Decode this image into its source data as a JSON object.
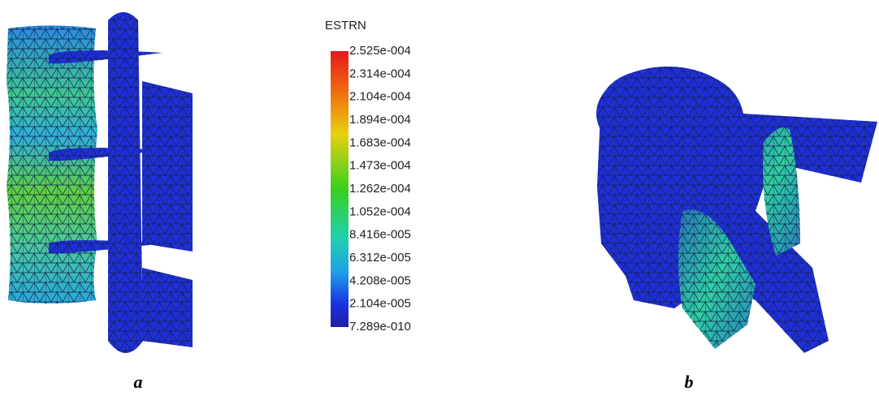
{
  "legend": {
    "title": "ESTRN",
    "labels": [
      "2.525e-004",
      "2.314e-004",
      "2.104e-004",
      "1.894e-004",
      "1.683e-004",
      "1.473e-004",
      "1.262e-004",
      "1.052e-004",
      "8.416e-005",
      "6.312e-005",
      "4.208e-005",
      "2.104e-005",
      "7.289e-010"
    ]
  },
  "panels": {
    "left": "a",
    "right": "b"
  }
}
